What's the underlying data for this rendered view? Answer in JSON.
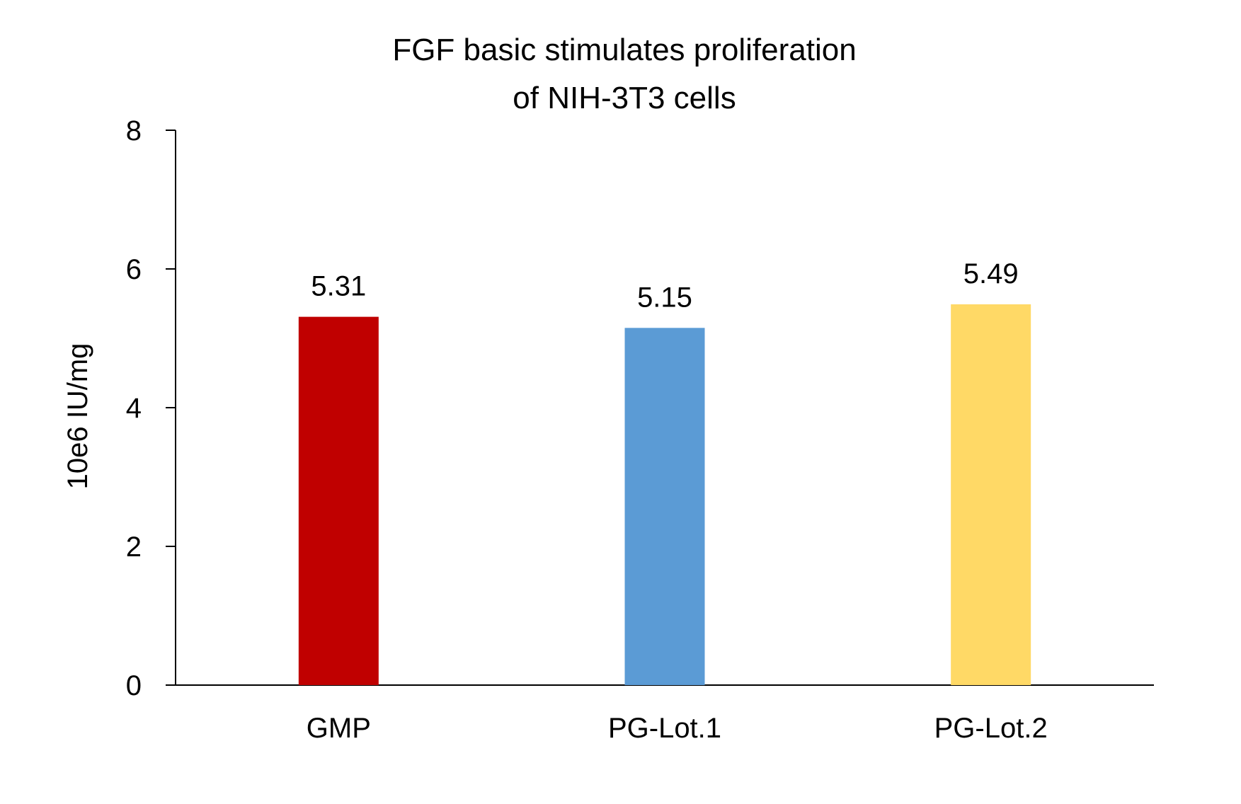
{
  "chart_data": {
    "type": "bar",
    "title_lines": [
      "FGF basic  stimulates proliferation",
      "of NIH-3T3 cells"
    ],
    "xlabel": "",
    "ylabel": "10e6 IU/mg",
    "ylim": [
      0,
      8
    ],
    "yticks": [
      0,
      2,
      4,
      6,
      8
    ],
    "categories": [
      "GMP",
      "PG-Lot.1",
      "PG-Lot.2"
    ],
    "values": [
      5.31,
      5.15,
      5.49
    ],
    "data_labels": [
      "5.31",
      "5.15",
      "5.49"
    ],
    "colors": [
      "#C00000",
      "#5B9BD5",
      "#FFD966"
    ],
    "grid": false,
    "legend": "none"
  }
}
